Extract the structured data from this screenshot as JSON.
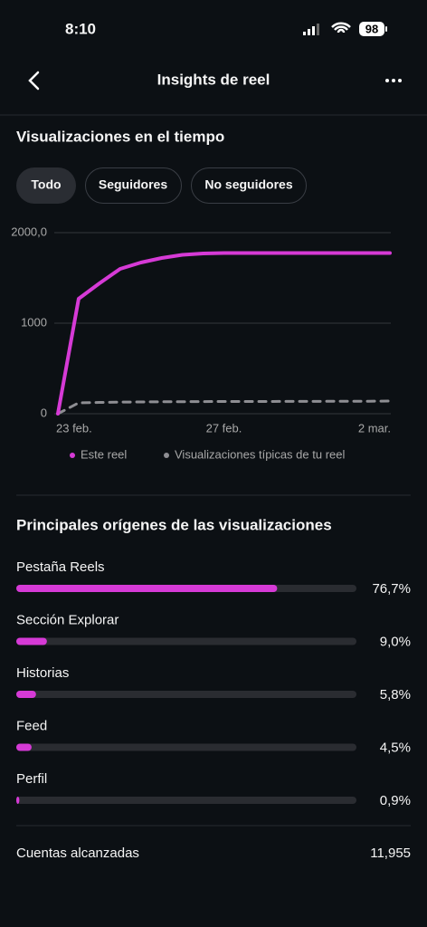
{
  "status_bar": {
    "time": "8:10",
    "battery": "98"
  },
  "header": {
    "title": "Insights de reel"
  },
  "section_title": "Visualizaciones en el tiempo",
  "tabs": [
    "Todo",
    "Seguidores",
    "No seguidores"
  ],
  "chart_data": [
    {
      "type": "line",
      "categories": [
        "23 feb.",
        null,
        null,
        null,
        null,
        null,
        null,
        null,
        "27 feb.",
        null,
        null,
        null,
        null,
        null,
        null,
        null,
        "2 mar."
      ],
      "series": [
        {
          "name": "Este reel",
          "color": "#d63ad6",
          "values": [
            0,
            1270,
            1440,
            1600,
            1670,
            1720,
            1755,
            1770,
            1775,
            1775,
            1775,
            1775,
            1775,
            1775,
            1775,
            1775,
            1775
          ]
        },
        {
          "name": "Visualizaciones típicas de tu reel",
          "color": "#8e8e93",
          "values": [
            0,
            120,
            125,
            128,
            130,
            132,
            133,
            134,
            135,
            135,
            135,
            136,
            136,
            137,
            138,
            138,
            140
          ]
        }
      ],
      "ylim": [
        0,
        2000
      ],
      "yticks": [
        0,
        1000,
        {
          "value": 2000,
          "label": "2000,0"
        }
      ],
      "grid": true
    },
    {
      "type": "hbar",
      "title": "Principales orígenes de las visualizaciones",
      "categories": [
        "Pestaña Reels",
        "Sección Explorar",
        "Historias",
        "Feed",
        "Perfil"
      ],
      "values": [
        76.7,
        9.0,
        5.8,
        4.5,
        0.9
      ],
      "value_labels": [
        "76,7%",
        "9,0%",
        "5,8%",
        "4,5%",
        "0,9%"
      ],
      "color": "#d63ad6",
      "xlim": [
        0,
        100
      ]
    }
  ],
  "footer": {
    "label": "Cuentas alcanzadas",
    "value": "11,955"
  }
}
